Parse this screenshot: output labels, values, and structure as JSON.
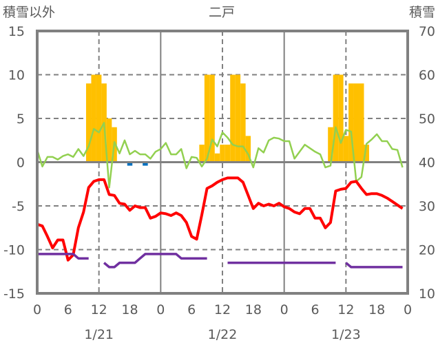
{
  "chart_data": {
    "type": "bar+line",
    "title": "二戸",
    "ylabel_left": "積雪以外",
    "ylabel_right": "積雪",
    "ylim_left": [
      -15,
      15
    ],
    "yticks_left": [
      "15",
      "10",
      "5",
      "0",
      "-5",
      "-10",
      "-15"
    ],
    "ylim_right": [
      10,
      70
    ],
    "yticks_right": [
      "70",
      "60",
      "50",
      "40",
      "30",
      "20",
      "10"
    ],
    "xlim_hours": [
      0,
      72
    ],
    "xtick_labels": [
      "0",
      "6",
      "12",
      "18",
      "0",
      "6",
      "12",
      "18",
      "0",
      "6",
      "12",
      "18",
      "0"
    ],
    "date_labels": [
      "1/21",
      "1/22",
      "1/23"
    ],
    "grid": true,
    "colors": {
      "snowfall": "#FFC000",
      "negative": "#0070C0",
      "temperature": "#FF0000",
      "green_series": "#92D050",
      "snow_depth": "#7030A0",
      "axis": "#808080",
      "text": "#595959"
    },
    "series": [
      {
        "name": "bars",
        "axis": "left",
        "type": "bar",
        "hours": [
          10,
          11,
          12,
          13,
          14,
          15,
          18,
          21,
          32,
          33,
          34,
          35,
          36,
          37,
          38,
          39,
          40,
          41,
          57,
          58,
          59,
          60,
          61,
          62,
          63,
          64
        ],
        "values": [
          9,
          10,
          10,
          9,
          5,
          4,
          -0.4,
          -0.4,
          2,
          10,
          10,
          1,
          2,
          2,
          10,
          10,
          9,
          3,
          4,
          10,
          10,
          3,
          9,
          9,
          9,
          2
        ]
      },
      {
        "name": "temperature",
        "axis": "left",
        "type": "line",
        "values": [
          -7.1,
          -7.3,
          -8.5,
          -9.8,
          -8.9,
          -8.9,
          -11.2,
          -10.6,
          -7.5,
          -5.7,
          -2.9,
          -2.2,
          -2.0,
          -2.0,
          -3.7,
          -3.8,
          -4.7,
          -4.8,
          -5.5,
          -5.0,
          -5.2,
          -5.2,
          -6.4,
          -6.2,
          -5.8,
          -5.9,
          -6.1,
          -5.8,
          -6.1,
          -6.9,
          -8.5,
          -8.8,
          -6.0,
          -3.0,
          -2.7,
          -2.3,
          -2.0,
          -1.8,
          -1.8,
          -1.8,
          -2.3,
          -3.8,
          -5.3,
          -4.7,
          -5.0,
          -4.8,
          -5.0,
          -4.7,
          -5.1,
          -5.3,
          -5.7,
          -5.9,
          -5.3,
          -5.3,
          -6.4,
          -6.4,
          -7.5,
          -6.9,
          -3.3,
          -3.1,
          -3.0,
          -2.3,
          -2.2,
          -3.0,
          -3.7,
          -3.6,
          -3.6,
          -3.8,
          -4.1,
          -4.5,
          -4.9,
          -5.3
        ]
      },
      {
        "name": "green_series",
        "axis": "left",
        "type": "line",
        "values": [
          1.4,
          -0.5,
          0.6,
          0.6,
          0.3,
          0.7,
          0.9,
          0.6,
          1.5,
          0.7,
          1.8,
          3.8,
          3.4,
          4.5,
          -2.9,
          2.3,
          1.0,
          2.5,
          0.9,
          1.3,
          0.9,
          0.9,
          0.4,
          1.2,
          1.5,
          2.2,
          0.9,
          0.9,
          1.5,
          -0.7,
          0.6,
          0.5,
          -0.5,
          0.4,
          2.6,
          1.8,
          3.4,
          2.8,
          2.0,
          1.8,
          1.8,
          0.9,
          -0.6,
          1.6,
          1.1,
          2.5,
          2.8,
          2.7,
          2.4,
          2.4,
          0.4,
          1.2,
          2.0,
          1.6,
          1.2,
          0.9,
          -0.6,
          -0.4,
          4.0,
          2.2,
          3.7,
          3.5,
          -2.2,
          -1.7,
          2.1,
          2.6,
          3.2,
          2.4,
          2.4,
          1.5,
          1.4,
          -0.6
        ]
      },
      {
        "name": "snow_depth",
        "axis": "right",
        "type": "line",
        "values": [
          19,
          19,
          19,
          19,
          19,
          19,
          19,
          19,
          18,
          18,
          18,
          null,
          null,
          17,
          16,
          16,
          17,
          17,
          17,
          17,
          18,
          19,
          19,
          19,
          19,
          19,
          19,
          19,
          18,
          18,
          18,
          18,
          18,
          18,
          null,
          null,
          null,
          17,
          17,
          17,
          17,
          17,
          17,
          17,
          17,
          17,
          17,
          17,
          17,
          17,
          17,
          17,
          17,
          17,
          17,
          17,
          17,
          17,
          17,
          null,
          17,
          16,
          16,
          16,
          16,
          16,
          16,
          16,
          16,
          16,
          16,
          16
        ]
      }
    ]
  }
}
